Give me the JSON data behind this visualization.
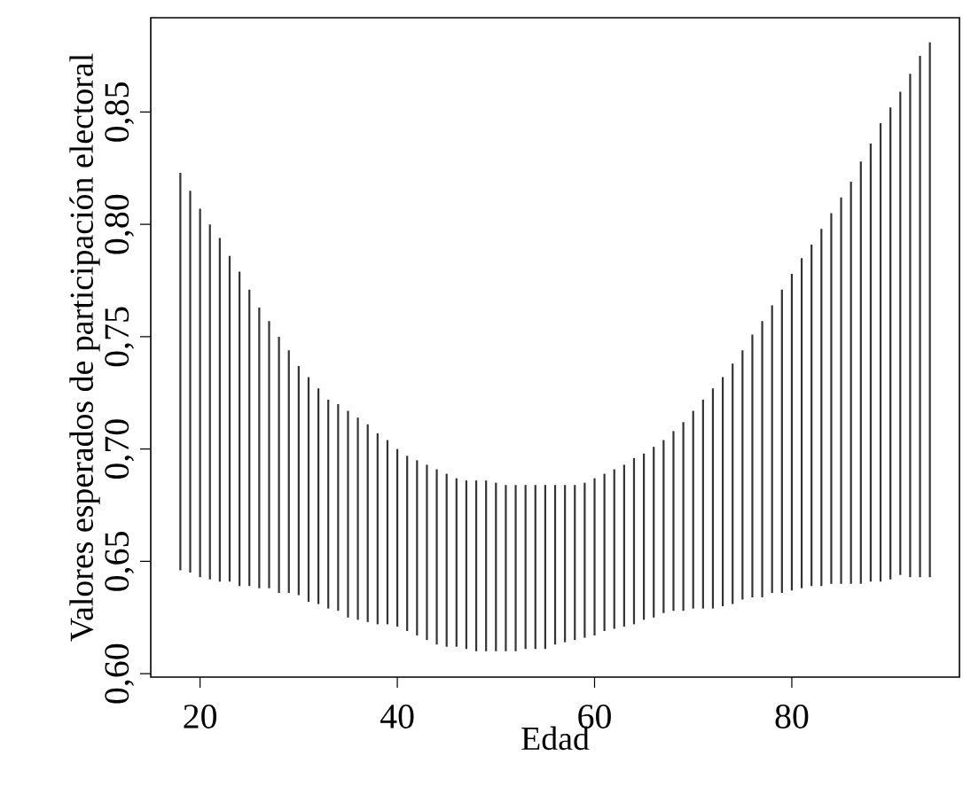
{
  "chart_data": {
    "type": "bar",
    "xlabel": "Edad",
    "ylabel": "Valores esperados de participación electoral",
    "color": "#333333",
    "x": [
      18,
      19,
      20,
      21,
      22,
      23,
      24,
      25,
      26,
      27,
      28,
      29,
      30,
      31,
      32,
      33,
      34,
      35,
      36,
      37,
      38,
      39,
      40,
      41,
      42,
      43,
      44,
      45,
      46,
      47,
      48,
      49,
      50,
      51,
      52,
      53,
      54,
      55,
      56,
      57,
      58,
      59,
      60,
      61,
      62,
      63,
      64,
      65,
      66,
      67,
      68,
      69,
      70,
      71,
      72,
      73,
      74,
      75,
      76,
      77,
      78,
      79,
      80,
      81,
      82,
      83,
      84,
      85,
      86,
      87,
      88,
      89,
      90,
      91,
      92,
      93,
      94
    ],
    "base": [
      0.646,
      0.645,
      0.643,
      0.642,
      0.641,
      0.641,
      0.639,
      0.639,
      0.638,
      0.638,
      0.636,
      0.636,
      0.635,
      0.632,
      0.631,
      0.629,
      0.628,
      0.625,
      0.624,
      0.623,
      0.622,
      0.622,
      0.621,
      0.619,
      0.617,
      0.615,
      0.613,
      0.612,
      0.612,
      0.611,
      0.61,
      0.61,
      0.61,
      0.61,
      0.61,
      0.611,
      0.611,
      0.611,
      0.613,
      0.614,
      0.615,
      0.616,
      0.617,
      0.619,
      0.62,
      0.621,
      0.622,
      0.624,
      0.625,
      0.627,
      0.628,
      0.628,
      0.629,
      0.629,
      0.629,
      0.63,
      0.631,
      0.633,
      0.634,
      0.634,
      0.636,
      0.636,
      0.637,
      0.638,
      0.639,
      0.639,
      0.64,
      0.64,
      0.64,
      0.64,
      0.641,
      0.641,
      0.642,
      0.644,
      0.643,
      0.643,
      0.643
    ],
    "values": [
      0.177,
      0.17,
      0.164,
      0.158,
      0.153,
      0.145,
      0.14,
      0.132,
      0.125,
      0.119,
      0.114,
      0.108,
      0.102,
      0.1,
      0.096,
      0.093,
      0.092,
      0.092,
      0.09,
      0.088,
      0.085,
      0.082,
      0.079,
      0.078,
      0.078,
      0.078,
      0.078,
      0.077,
      0.075,
      0.075,
      0.076,
      0.076,
      0.075,
      0.074,
      0.074,
      0.073,
      0.073,
      0.073,
      0.071,
      0.07,
      0.069,
      0.069,
      0.07,
      0.07,
      0.071,
      0.072,
      0.074,
      0.074,
      0.076,
      0.077,
      0.08,
      0.084,
      0.088,
      0.093,
      0.098,
      0.102,
      0.107,
      0.111,
      0.117,
      0.123,
      0.128,
      0.135,
      0.141,
      0.147,
      0.152,
      0.159,
      0.165,
      0.172,
      0.179,
      0.188,
      0.195,
      0.204,
      0.21,
      0.215,
      0.224,
      0.232,
      0.238
    ],
    "xlim": [
      15,
      97
    ],
    "ylim": [
      0.5985,
      0.892
    ],
    "xticks": [
      20,
      40,
      60,
      80
    ],
    "yticks": [
      {
        "value": 0.6,
        "label": "0,60"
      },
      {
        "value": 0.65,
        "label": "0,65"
      },
      {
        "value": 0.7,
        "label": "0,70"
      },
      {
        "value": 0.75,
        "label": "0,75"
      },
      {
        "value": 0.8,
        "label": "0,80"
      },
      {
        "value": 0.85,
        "label": "0,85"
      }
    ]
  }
}
